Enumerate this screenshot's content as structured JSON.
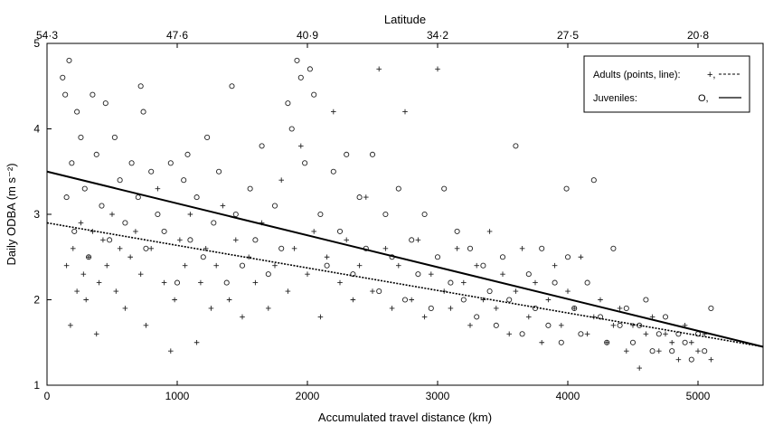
{
  "chart_data": {
    "type": "scatter",
    "xlabel": "Accumulated travel distance (km)",
    "ylabel": "Daily ODBA (m s⁻²)",
    "top_axis_label": "Latitude",
    "xlim": [
      0,
      5500
    ],
    "ylim": [
      1,
      5
    ],
    "x_ticks": [
      0,
      1000,
      2000,
      3000,
      4000,
      5000
    ],
    "x_tick_labels": [
      "0",
      "1000",
      "2000",
      "3000",
      "4000",
      "5000"
    ],
    "y_ticks": [
      1,
      2,
      3,
      4,
      5
    ],
    "y_tick_labels": [
      "1",
      "2",
      "3",
      "4",
      "5"
    ],
    "top_ticks": [
      0,
      1000,
      2000,
      3000,
      4000,
      5000
    ],
    "top_tick_labels": [
      "54·3",
      "47·6",
      "40·9",
      "34·2",
      "27·5",
      "20·8"
    ],
    "grid": false,
    "legend_position": "top-right",
    "legend": [
      {
        "label": "Adults (points, line):",
        "symbol_text": "+,",
        "marker": "plus",
        "line": "dashed"
      },
      {
        "label": "Juveniles:",
        "symbol_text": "O,",
        "marker": "circle",
        "line": "solid"
      }
    ],
    "series": [
      {
        "name": "Adults",
        "marker": "plus",
        "fit_line": {
          "x": [
            0,
            5500
          ],
          "y": [
            2.9,
            1.45
          ],
          "style": "dashed"
        },
        "points": [
          [
            150,
            2.4
          ],
          [
            180,
            1.7
          ],
          [
            200,
            2.6
          ],
          [
            230,
            2.1
          ],
          [
            260,
            2.9
          ],
          [
            280,
            2.3
          ],
          [
            300,
            2.0
          ],
          [
            320,
            2.5
          ],
          [
            350,
            2.8
          ],
          [
            380,
            1.6
          ],
          [
            400,
            2.2
          ],
          [
            430,
            2.7
          ],
          [
            460,
            2.4
          ],
          [
            500,
            3.0
          ],
          [
            530,
            2.1
          ],
          [
            560,
            2.6
          ],
          [
            600,
            1.9
          ],
          [
            640,
            2.5
          ],
          [
            680,
            2.8
          ],
          [
            720,
            2.3
          ],
          [
            760,
            1.7
          ],
          [
            800,
            2.6
          ],
          [
            850,
            3.3
          ],
          [
            900,
            2.2
          ],
          [
            950,
            1.4
          ],
          [
            980,
            2.0
          ],
          [
            1020,
            2.7
          ],
          [
            1060,
            2.4
          ],
          [
            1100,
            3.0
          ],
          [
            1150,
            1.5
          ],
          [
            1180,
            2.2
          ],
          [
            1220,
            2.6
          ],
          [
            1260,
            1.9
          ],
          [
            1300,
            2.4
          ],
          [
            1350,
            3.1
          ],
          [
            1400,
            2.0
          ],
          [
            1450,
            2.7
          ],
          [
            1500,
            1.8
          ],
          [
            1550,
            2.5
          ],
          [
            1600,
            2.2
          ],
          [
            1650,
            2.9
          ],
          [
            1700,
            1.9
          ],
          [
            1750,
            2.4
          ],
          [
            1800,
            3.4
          ],
          [
            1850,
            2.1
          ],
          [
            1900,
            2.6
          ],
          [
            1950,
            3.8
          ],
          [
            2000,
            2.3
          ],
          [
            2050,
            2.8
          ],
          [
            2100,
            1.8
          ],
          [
            2150,
            2.5
          ],
          [
            2200,
            4.2
          ],
          [
            2250,
            2.2
          ],
          [
            2300,
            2.7
          ],
          [
            2350,
            2.0
          ],
          [
            2400,
            2.4
          ],
          [
            2450,
            3.2
          ],
          [
            2500,
            2.1
          ],
          [
            2550,
            4.7
          ],
          [
            2600,
            2.6
          ],
          [
            2650,
            1.9
          ],
          [
            2700,
            2.4
          ],
          [
            2750,
            4.2
          ],
          [
            2800,
            2.0
          ],
          [
            2850,
            2.7
          ],
          [
            2900,
            1.8
          ],
          [
            2950,
            2.3
          ],
          [
            3000,
            4.7
          ],
          [
            3050,
            2.1
          ],
          [
            3100,
            1.9
          ],
          [
            3150,
            2.6
          ],
          [
            3200,
            2.2
          ],
          [
            3250,
            1.7
          ],
          [
            3300,
            2.4
          ],
          [
            3350,
            2.0
          ],
          [
            3400,
            2.8
          ],
          [
            3450,
            1.9
          ],
          [
            3500,
            2.3
          ],
          [
            3550,
            1.6
          ],
          [
            3600,
            2.1
          ],
          [
            3650,
            2.6
          ],
          [
            3700,
            1.8
          ],
          [
            3750,
            2.2
          ],
          [
            3800,
            1.5
          ],
          [
            3850,
            2.0
          ],
          [
            3900,
            2.4
          ],
          [
            3950,
            1.7
          ],
          [
            4000,
            2.1
          ],
          [
            4050,
            1.9
          ],
          [
            4100,
            2.5
          ],
          [
            4150,
            1.6
          ],
          [
            4200,
            1.8
          ],
          [
            4250,
            2.0
          ],
          [
            4300,
            1.5
          ],
          [
            4350,
            1.7
          ],
          [
            4400,
            1.9
          ],
          [
            4450,
            1.4
          ],
          [
            4500,
            1.7
          ],
          [
            4550,
            1.2
          ],
          [
            4600,
            1.6
          ],
          [
            4650,
            1.8
          ],
          [
            4700,
            1.4
          ],
          [
            4750,
            1.6
          ],
          [
            4800,
            1.5
          ],
          [
            4850,
            1.3
          ],
          [
            4900,
            1.7
          ],
          [
            4950,
            1.5
          ],
          [
            5000,
            1.4
          ],
          [
            5050,
            1.6
          ],
          [
            5100,
            1.3
          ]
        ]
      },
      {
        "name": "Juveniles",
        "marker": "circle",
        "fit_line": {
          "x": [
            0,
            5500
          ],
          "y": [
            3.5,
            1.45
          ],
          "style": "solid"
        },
        "points": [
          [
            120,
            4.6
          ],
          [
            140,
            4.4
          ],
          [
            150,
            3.2
          ],
          [
            170,
            4.8
          ],
          [
            190,
            3.6
          ],
          [
            210,
            2.8
          ],
          [
            230,
            4.2
          ],
          [
            260,
            3.9
          ],
          [
            290,
            3.3
          ],
          [
            320,
            2.5
          ],
          [
            350,
            4.4
          ],
          [
            380,
            3.7
          ],
          [
            420,
            3.1
          ],
          [
            450,
            4.3
          ],
          [
            480,
            2.7
          ],
          [
            520,
            3.9
          ],
          [
            560,
            3.4
          ],
          [
            600,
            2.9
          ],
          [
            650,
            3.6
          ],
          [
            700,
            3.2
          ],
          [
            720,
            4.5
          ],
          [
            740,
            4.2
          ],
          [
            760,
            2.6
          ],
          [
            800,
            3.5
          ],
          [
            850,
            3.0
          ],
          [
            900,
            2.8
          ],
          [
            950,
            3.6
          ],
          [
            1000,
            2.2
          ],
          [
            1050,
            3.4
          ],
          [
            1080,
            3.7
          ],
          [
            1100,
            2.7
          ],
          [
            1150,
            3.2
          ],
          [
            1200,
            2.5
          ],
          [
            1230,
            3.9
          ],
          [
            1280,
            2.9
          ],
          [
            1320,
            3.5
          ],
          [
            1380,
            2.2
          ],
          [
            1420,
            4.5
          ],
          [
            1450,
            3.0
          ],
          [
            1500,
            2.4
          ],
          [
            1560,
            3.3
          ],
          [
            1600,
            2.7
          ],
          [
            1650,
            3.8
          ],
          [
            1700,
            2.3
          ],
          [
            1750,
            3.1
          ],
          [
            1800,
            2.6
          ],
          [
            1850,
            4.3
          ],
          [
            1880,
            4.0
          ],
          [
            1920,
            4.8
          ],
          [
            1950,
            4.6
          ],
          [
            1980,
            3.6
          ],
          [
            2020,
            4.7
          ],
          [
            2050,
            4.4
          ],
          [
            2100,
            3.0
          ],
          [
            2150,
            2.4
          ],
          [
            2200,
            3.5
          ],
          [
            2250,
            2.8
          ],
          [
            2300,
            3.7
          ],
          [
            2350,
            2.3
          ],
          [
            2400,
            3.2
          ],
          [
            2450,
            2.6
          ],
          [
            2500,
            3.7
          ],
          [
            2550,
            2.1
          ],
          [
            2600,
            3.0
          ],
          [
            2650,
            2.5
          ],
          [
            2700,
            3.3
          ],
          [
            2750,
            2.0
          ],
          [
            2800,
            2.7
          ],
          [
            2850,
            2.3
          ],
          [
            2900,
            3.0
          ],
          [
            2950,
            1.9
          ],
          [
            3000,
            2.5
          ],
          [
            3050,
            3.3
          ],
          [
            3100,
            2.2
          ],
          [
            3150,
            2.8
          ],
          [
            3200,
            2.0
          ],
          [
            3250,
            2.6
          ],
          [
            3300,
            1.8
          ],
          [
            3350,
            2.4
          ],
          [
            3400,
            2.1
          ],
          [
            3450,
            1.7
          ],
          [
            3500,
            2.5
          ],
          [
            3550,
            2.0
          ],
          [
            3600,
            3.8
          ],
          [
            3650,
            1.6
          ],
          [
            3700,
            2.3
          ],
          [
            3750,
            1.9
          ],
          [
            3800,
            2.6
          ],
          [
            3850,
            1.7
          ],
          [
            3900,
            2.2
          ],
          [
            3950,
            1.5
          ],
          [
            3990,
            3.3
          ],
          [
            4000,
            2.5
          ],
          [
            4050,
            1.9
          ],
          [
            4100,
            1.6
          ],
          [
            4150,
            2.2
          ],
          [
            4200,
            3.4
          ],
          [
            4250,
            1.8
          ],
          [
            4300,
            1.5
          ],
          [
            4350,
            2.6
          ],
          [
            4400,
            1.7
          ],
          [
            4450,
            1.9
          ],
          [
            4500,
            1.5
          ],
          [
            4550,
            1.7
          ],
          [
            4600,
            2.0
          ],
          [
            4650,
            1.4
          ],
          [
            4700,
            1.6
          ],
          [
            4750,
            1.8
          ],
          [
            4800,
            1.4
          ],
          [
            4850,
            1.6
          ],
          [
            4900,
            1.5
          ],
          [
            4950,
            1.3
          ],
          [
            5000,
            1.6
          ],
          [
            5050,
            1.4
          ],
          [
            5100,
            1.9
          ]
        ]
      }
    ]
  }
}
